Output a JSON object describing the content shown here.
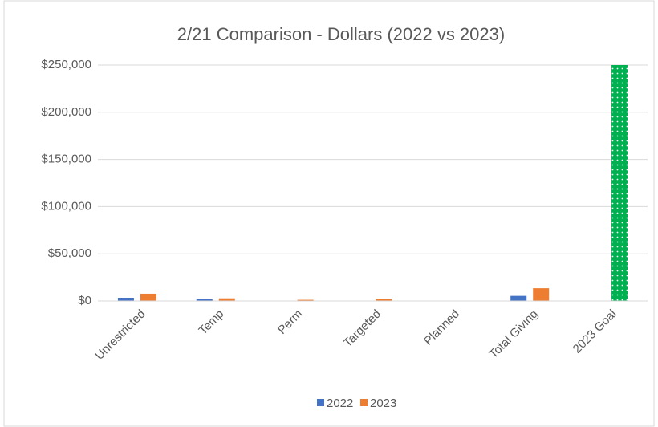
{
  "chart_data": {
    "type": "bar",
    "title": "2/21 Comparison - Dollars (2022 vs 2023)",
    "categories": [
      "Unrestricted",
      "Temp",
      "Perm",
      "Targeted",
      "Planned",
      "Total Giving",
      "2023 Goal"
    ],
    "series": [
      {
        "name": "2022",
        "color": "#4472c4",
        "values": [
          3400,
          2000,
          0,
          0,
          0,
          5400,
          null
        ]
      },
      {
        "name": "2023",
        "color": "#ed7d31",
        "values": [
          7700,
          2800,
          1200,
          1800,
          0,
          13500,
          250000
        ],
        "point_colors": [
          null,
          null,
          null,
          null,
          null,
          null,
          "#00b050"
        ]
      }
    ],
    "ylim": [
      0,
      250000
    ],
    "yticks": [
      {
        "value": 0,
        "label": "$0"
      },
      {
        "value": 50000,
        "label": "$50,000"
      },
      {
        "value": 100000,
        "label": "$100,000"
      },
      {
        "value": 150000,
        "label": "$150,000"
      },
      {
        "value": 200000,
        "label": "$200,000"
      },
      {
        "value": 250000,
        "label": "$250,000"
      }
    ],
    "grid": true,
    "legend": "bottom"
  }
}
